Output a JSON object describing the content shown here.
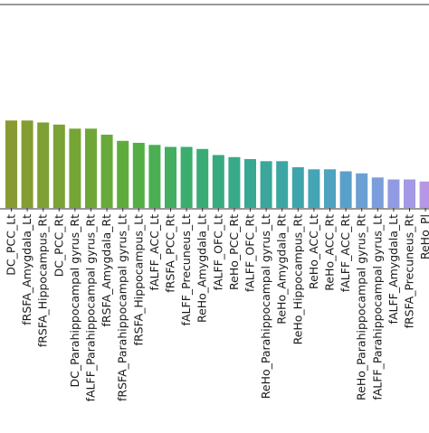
{
  "chart_data": {
    "type": "bar",
    "title": "",
    "xlabel": "",
    "ylabel": "",
    "grid": false,
    "ylim": [
      0,
      1.0
    ],
    "categories": [
      "DC_PCC_Lt",
      "fRSFA_Amygdala_Lt",
      "fRSFA_Hippocampus_Rt",
      "DC_PCC_Rt",
      "DC_Parahippocampal gyrus_Rt",
      "fALFF_Parahippocampal gyrus_Rt",
      "fRSFA_Amygdala_Rt",
      "fRSFA_Parahippocampal gyrus_Lt",
      "fRSFA_Hippocampus_Lt",
      "fALFF_ACC_Lt",
      "fRSFA_PCC_Rt",
      "fALFF_Precuneus_Lt",
      "ReHo_Amygdala_Lt",
      "fALFF_OFC_Lt",
      "ReHo_PCC_Rt",
      "fALFF_OFC_Rt",
      "ReHo_Parahippocampal gyrus_Lt",
      "ReHo_Amygdala_Rt",
      "ReHo_Hippocampus_Rt",
      "ReHo_ACC_Lt",
      "ReHo_ACC_Rt",
      "fALFF_ACC_Rt",
      "ReHo_Parahippocampal gyrus_Rt",
      "fALFF_Parahippocampal gyrus_Lt",
      "fALFF_Amygdala_Lt",
      "fRSFA_Precuneus_Rt",
      "ReHo_Pl"
    ],
    "values": [
      0.43,
      0.43,
      0.42,
      0.41,
      0.39,
      0.39,
      0.36,
      0.33,
      0.32,
      0.31,
      0.3,
      0.3,
      0.29,
      0.26,
      0.25,
      0.24,
      0.23,
      0.23,
      0.2,
      0.19,
      0.19,
      0.18,
      0.17,
      0.15,
      0.14,
      0.14,
      0.13
    ],
    "colors": [
      "#889a32",
      "#849d33",
      "#7fa034",
      "#7aa234",
      "#74a535",
      "#6ea737",
      "#67aa39",
      "#5fac3d",
      "#55ae44",
      "#4aaf53",
      "#41ae60",
      "#3bad6c",
      "#39ac76",
      "#38aa80",
      "#38a989",
      "#39a892",
      "#3aa79a",
      "#3ca6a3",
      "#3fa5ac",
      "#45a4b5",
      "#4ea3bf",
      "#5aa1c9",
      "#6aa0d3",
      "#7c9ddc",
      "#909be3",
      "#a399e6",
      "#b597e6"
    ]
  }
}
